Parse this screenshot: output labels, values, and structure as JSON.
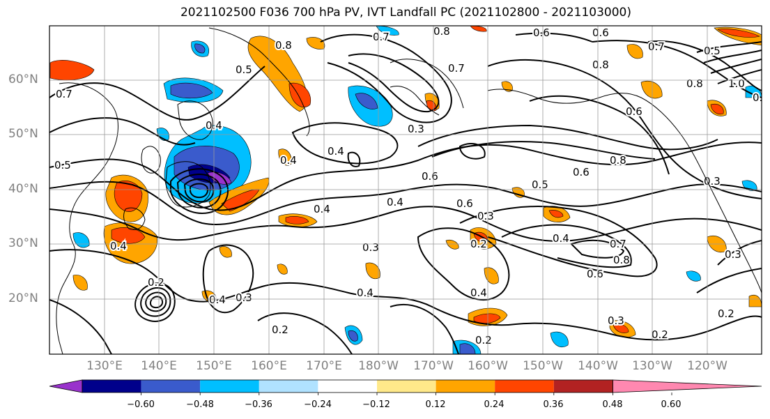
{
  "title": "2021102500 F036 700 hPa PV, IVT Landfall PC (2021102800 - 2021103000)",
  "lat_labels": [
    "60°N",
    "50°N",
    "40°N",
    "30°N",
    "20°N"
  ],
  "lon_labels": [
    "130°E",
    "140°E",
    "150°E",
    "160°E",
    "170°E",
    "180°W",
    "170°W",
    "160°W",
    "150°W",
    "140°W",
    "130°W",
    "120°W"
  ],
  "colorbar": {
    "tick_labels": [
      "−0.60",
      "−0.48",
      "−0.36",
      "−0.24",
      "−0.12",
      "0.12",
      "0.24",
      "0.36",
      "0.48",
      "0.60"
    ],
    "colors": [
      "#9932cc",
      "#00008b",
      "#3a5bcc",
      "#00bfff",
      "#b0e2ff",
      "#ffffff",
      "#ffe98a",
      "#ffa500",
      "#ff4500",
      "#b22222",
      "#ff88b0"
    ]
  },
  "contour_labels": [
    "0.8",
    "0.6",
    "0.7",
    "0.6",
    "0.8",
    "0.5",
    "0.7",
    "0.3",
    "0.4",
    "0.5",
    "0.6",
    "0.8",
    "0.6",
    "0.5",
    "0.4",
    "0.4",
    "0.6",
    "0.3",
    "0.4",
    "0.2",
    "0.3",
    "0.4",
    "0.3",
    "0.2",
    "0.2",
    "0.4",
    "0.6",
    "0.8",
    "0.7",
    "0.3",
    "0.2",
    "0.2",
    "0.5",
    "0.4",
    "0.7",
    "0.8",
    "0.3",
    "0.2",
    "0.4",
    "0.4",
    "0.6",
    "0.7",
    "0.8",
    "1.0",
    "0.5",
    "0.3",
    "0.4"
  ]
}
